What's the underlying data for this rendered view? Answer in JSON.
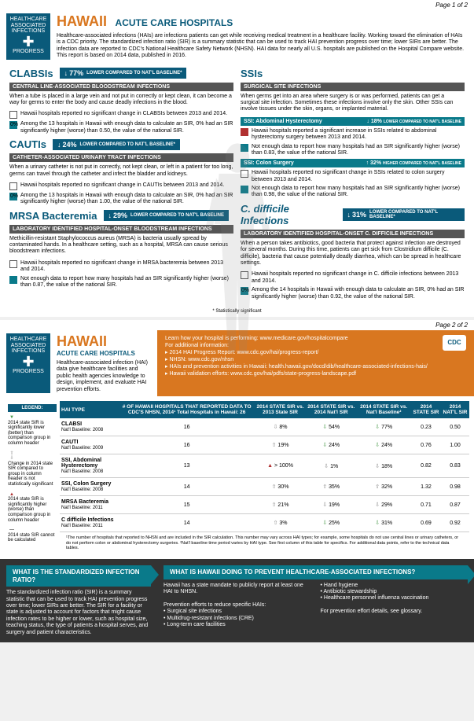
{
  "page1_num": "Page 1 of 2",
  "page2_num": "Page 2 of 2",
  "badge": {
    "l1": "HEALTHCARE",
    "l2": "ASSOCIATED",
    "l3": "INFECTIONS",
    "l4": "PROGRESS"
  },
  "state": "HAWAII",
  "subtitle": "ACUTE CARE HOSPITALS",
  "intro": "Healthcare-associated infections (HAIs) are infections patients can get while receiving medical treatment in a healthcare facility. Working toward the elimination of HAIs is a CDC priority. The standardized infection ratio (SIR) is a summary statistic that can be used to track HAI prevention progress over time; lower SIRs are better. The infection data are reported to CDC's National Healthcare Safety Network (NHSN). HAI data for nearly all U.S. hospitals are published on the Hospital Compare website. This report is based on 2014 data, published in 2016.",
  "sections": {
    "clabsi": {
      "title": "CLABSIs",
      "pct": "77%",
      "dir": "↓",
      "cmp": "LOWER COMPARED TO NAT'L BASELINE*",
      "sub": "CENTRAL LINE-ASSOCIATED BLOODSTREAM INFECTIONS",
      "desc": "When a tube is placed in a large vein and not put in correctly or kept clean, it can become a way for germs to enter the body and cause deadly infections in the blood.",
      "b1": "Hawaii hospitals reported no significant change in CLABSIs between 2013 and 2014.",
      "b2": "Among the 13 hospitals in Hawaii with enough data to calculate an SIR, 0% had an SIR significantly higher (worse) than 0.50, the value of the national SIR."
    },
    "cauti": {
      "title": "CAUTIs",
      "pct": "24%",
      "dir": "↓",
      "cmp": "LOWER COMPARED TO NAT'L BASELINE*",
      "sub": "CATHETER-ASSOCIATED URINARY TRACT INFECTIONS",
      "desc": "When a urinary catheter is not put in correctly, not kept clean, or left in a patient for too long, germs can travel through the catheter and infect the bladder and kidneys.",
      "b1": "Hawaii hospitals reported no significant change in CAUTIs between 2013 and 2014.",
      "b2": "Among the 13 hospitals in Hawaii with enough data to calculate an SIR, 0% had an SIR significantly higher (worse) than 1.00, the value of the national SIR."
    },
    "mrsa": {
      "title": "MRSA Bacteremia",
      "pct": "29%",
      "dir": "↓",
      "cmp": "LOWER COMPARED TO NAT'L BASELINE",
      "sub": "LABORATORY IDENTIFIED HOSPITAL-ONSET BLOODSTREAM INFECTIONS",
      "desc": "Methicillin-resistant Staphylococcus aureus (MRSA) is bacteria usually spread by contaminated hands. In a healthcare setting, such as a hospital, MRSA can cause serious bloodstream infections.",
      "b1": "Hawaii hospitals reported no significant change in MRSA bacteremia between 2013 and 2014.",
      "b2": "Not enough data to report how many hospitals had an SIR significantly higher (worse) than 0.87, the value of the national SIR."
    },
    "ssi": {
      "title": "SSIs",
      "sub": "SURGICAL SITE INFECTIONS",
      "desc": "When germs get into an area where surgery is or was performed, patients can get a surgical site infection. Sometimes these infections involve only the skin. Other SSIs can involve tissues under the skin, organs, or implanted material."
    },
    "ssi_ah": {
      "title": "SSI: Abdominal Hysterectomy",
      "pct": "18%",
      "dir": "↓",
      "cmp": "LOWER COMPARED TO NAT'L BASELINE",
      "b1": "Hawaii hospitals reported a significant increase in SSIs related to abdominal hysterectomy surgery between 2013 and 2014.",
      "b2": "Not enough data to report how many hospitals had an SIR significantly higher (worse) than 0.83, the value of the national SIR."
    },
    "ssi_cs": {
      "title": "SSI: Colon Surgery",
      "pct": "32%",
      "dir": "↑",
      "cmp": "HIGHER COMPARED TO NAT'L BASELINE",
      "b1": "Hawaii hospitals reported no significant change in SSIs related to colon surgery between 2013 and 2014.",
      "b2": "Not enough data to report how many hospitals had an SIR significantly higher (worse) than 0.98, the value of the national SIR."
    },
    "cdiff": {
      "title": "C. difficile Infections",
      "pct": "31%",
      "dir": "↓",
      "cmp": "LOWER COMPARED TO NAT'L BASELINE*",
      "sub": "LABORATORY IDENTIFIED HOSPITAL-ONSET C. DIFFICILE INFECTIONS",
      "desc": "When a person takes antibiotics, good bacteria that protect against infection are destroyed for several months. During this time, patients can get sick from Clostridium difficile (C. difficile), bacteria that cause potentially deadly diarrhea, which can be spread in healthcare settings.",
      "b1": "Hawaii hospitals reported no significant change in C. difficile infections between 2013 and 2014.",
      "b2": "Among the 14 hospitals in Hawaii with enough data to calculate an SIR, 0% had an SIR significantly higher (worse) than 0.92, the value of the national SIR."
    }
  },
  "stat_sig": "* Statistically significant",
  "p2_intro": "Healthcare-associated infection (HAI) data give healthcare facilities and public health agencies knowledge to design, implement, and evaluate HAI prevention efforts.",
  "p2_banner": {
    "lead": "Learn how your hospital is performing: www.medicare.gov/hospitalcompare",
    "more": "For additional information:",
    "items": [
      "2014 HAI Progress Report: www.cdc.gov/hai/progress-report/",
      "NHSN: www.cdc.gov/nhsn",
      "HAIs and prevention activities in Hawaii: health.hawaii.gov/docd/dib/healthcare-associated-infections-hais/",
      "Hawaii validation efforts: www.cdc.gov/hai/pdfs/state-progress-landscape.pdf"
    ]
  },
  "legend": {
    "hdr": "LEGEND:",
    "i1": "2014 state SIR is significantly lower (better) than comparison group in column header",
    "i2": "Change in 2014 state SIR compared to group in column header is not statistically significant",
    "i3": "2014 state SIR is significantly higher (worse) than comparison group in column header",
    "i4": "2014 state SIR cannot be calculated"
  },
  "table": {
    "headers": [
      "HAI TYPE",
      "# OF HAWAII HOSPITALS THAT REPORTED DATA TO CDC'S NHSN, 2014¹\nTotal Hospitals in Hawaii: 26",
      "2014 STATE SIR vs. 2013 State SIR",
      "2014 STATE SIR vs. 2014 Nat'l SIR",
      "2014 STATE SIR vs. Nat'l Baseline²",
      "2014 STATE SIR",
      "2014 NAT'L SIR"
    ],
    "rows": [
      {
        "type": "CLABSI",
        "base": "Nat'l Baseline: 2008",
        "n": "16",
        "c1": {
          "a": "⇩",
          "v": "8%",
          "c": "w"
        },
        "c2": {
          "a": "⇩",
          "v": "54%",
          "c": "g"
        },
        "c3": {
          "a": "⇩",
          "v": "77%",
          "c": "g"
        },
        "s": "0.23",
        "ns": "0.50"
      },
      {
        "type": "CAUTI",
        "base": "Nat'l Baseline: 2009",
        "n": "16",
        "c1": {
          "a": "⇧",
          "v": "19%",
          "c": "w"
        },
        "c2": {
          "a": "⇩",
          "v": "24%",
          "c": "g"
        },
        "c3": {
          "a": "⇩",
          "v": "24%",
          "c": "g"
        },
        "s": "0.76",
        "ns": "1.00"
      },
      {
        "type": "SSI, Abdominal Hysterectomy",
        "base": "Nat'l Baseline: 2008",
        "n": "13",
        "c1": {
          "a": "▲",
          "v": "> 100%",
          "c": "r"
        },
        "c2": {
          "a": "⇩",
          "v": "1%",
          "c": "w"
        },
        "c3": {
          "a": "⇩",
          "v": "18%",
          "c": "w"
        },
        "s": "0.82",
        "ns": "0.83"
      },
      {
        "type": "SSI, Colon Surgery",
        "base": "Nat'l Baseline: 2008",
        "n": "14",
        "c1": {
          "a": "⇧",
          "v": "30%",
          "c": "w"
        },
        "c2": {
          "a": "⇧",
          "v": "35%",
          "c": "w"
        },
        "c3": {
          "a": "⇧",
          "v": "32%",
          "c": "w"
        },
        "s": "1.32",
        "ns": "0.98"
      },
      {
        "type": "MRSA Bacteremia",
        "base": "Nat'l Baseline: 2011",
        "n": "15",
        "c1": {
          "a": "⇧",
          "v": "21%",
          "c": "w"
        },
        "c2": {
          "a": "⇩",
          "v": "19%",
          "c": "w"
        },
        "c3": {
          "a": "⇩",
          "v": "29%",
          "c": "w"
        },
        "s": "0.71",
        "ns": "0.87"
      },
      {
        "type": "C difficile Infections",
        "base": "Nat'l Baseline: 2011",
        "n": "14",
        "c1": {
          "a": "⇧",
          "v": "3%",
          "c": "w"
        },
        "c2": {
          "a": "⇩",
          "v": "25%",
          "c": "g"
        },
        "c3": {
          "a": "⇩",
          "v": "31%",
          "c": "g"
        },
        "s": "0.69",
        "ns": "0.92"
      }
    ],
    "foot": "¹The number of hospitals that reported to NHSN and are included in the SIR calculation. This number may vary across HAI types; for example, some hospitals do not use central lines or urinary catheters, or do not perform colon or abdominal hysterectomy surgeries. ²Nat'l baseline time period varies by HAI type. See first column of this table for specifics. For additional data points, refer to the technical data tables."
  },
  "bottom": {
    "h1": "WHAT IS THE STANDARDIZED INFECTION RATIO?",
    "t1": "The standardized infection ratio (SIR) is a summary statistic that can be used to track HAI prevention progress over time; lower SIRs are better. The SIR for a facility or state is adjusted to account for factors that might cause infection rates to be higher or lower, such as hospital size, teaching status, the type of patients a hospital serves, and surgery and patient characteristics.",
    "h2": "WHAT IS HAWAII DOING TO PREVENT HEALTHCARE-ASSOCIATED INFECTIONS?",
    "t2": "Hawaii has a state mandate to publicly report at least one HAI to NHSN.",
    "t3": "Prevention efforts to reduce specific HAIs:",
    "l1": [
      "Surgical site infections",
      "Multidrug-resistant infections (CRE)",
      "Long-term care facilities"
    ],
    "l2": [
      "Hand hygiene",
      "Antibiotic stewardship",
      "Healthcare personnel influenza vaccination"
    ],
    "t4": "For prevention effort details, see glossary."
  }
}
